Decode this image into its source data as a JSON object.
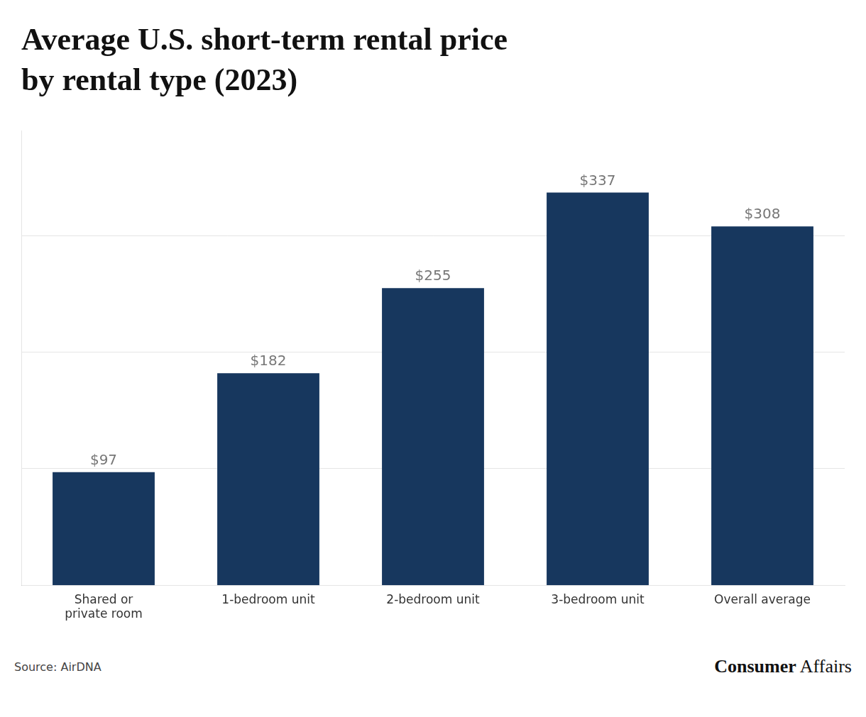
{
  "chart_data": {
    "type": "bar",
    "title": "Average U.S. short-term rental price",
    "subtitle": "by rental type (2023)",
    "categories": [
      "Shared or\nprivate room",
      "1-bedroom unit",
      "2-bedroom unit",
      "3-bedroom unit",
      "Overall average"
    ],
    "values": [
      97,
      182,
      255,
      337,
      308
    ],
    "value_labels": [
      "$97",
      "$182",
      "$255",
      "$337",
      "$308"
    ],
    "data_labels": true,
    "color": "#17375e",
    "ylim": [
      0,
      390
    ],
    "yticks": [
      100,
      200,
      300
    ],
    "grid": true,
    "tick_labels": "x",
    "annotations": [
      "Source: AirDNA",
      "Consumer",
      "Affairs"
    ]
  }
}
